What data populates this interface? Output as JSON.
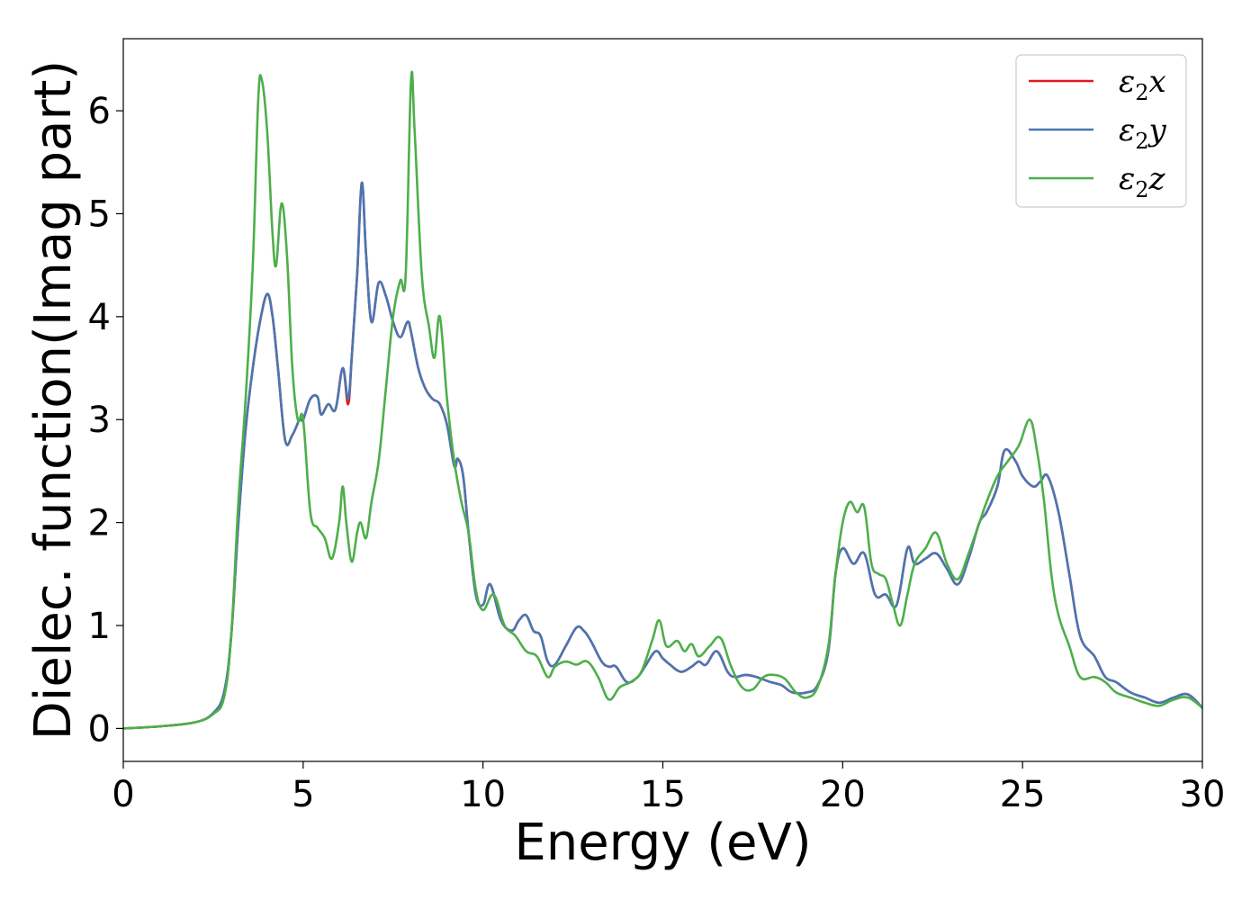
{
  "chart_data": {
    "type": "line",
    "xlabel": "Energy (eV)",
    "ylabel": "Dielec. function(Imag part)",
    "xlim": [
      0,
      30
    ],
    "ylim": [
      -0.32,
      6.7
    ],
    "xticks": [
      "0",
      "5",
      "10",
      "15",
      "20",
      "25",
      "30"
    ],
    "yticks": [
      "0",
      "1",
      "2",
      "3",
      "4",
      "5",
      "6"
    ],
    "grid": false,
    "legend_position": "top-right",
    "series": [
      {
        "name_main": "ε",
        "name_sub": "2",
        "name_suffix": "x",
        "color": "#e41a1c",
        "x": [
          0,
          1,
          2,
          2.5,
          2.8,
          3.0,
          3.2,
          3.4,
          3.6,
          3.8,
          4.0,
          4.15,
          4.3,
          4.5,
          4.7,
          4.9,
          5.0,
          5.2,
          5.4,
          5.5,
          5.7,
          5.9,
          6.1,
          6.25,
          6.35,
          6.5,
          6.63,
          6.75,
          6.9,
          7.1,
          7.3,
          7.5,
          7.7,
          7.9,
          8.0,
          8.2,
          8.4,
          8.6,
          8.8,
          9.0,
          9.2,
          9.3,
          9.45,
          9.6,
          9.8,
          10.0,
          10.2,
          10.5,
          10.8,
          11.0,
          11.2,
          11.4,
          11.6,
          11.8,
          12.0,
          12.3,
          12.6,
          12.8,
          13.0,
          13.3,
          13.5,
          13.7,
          14.0,
          14.3,
          14.5,
          14.8,
          15.0,
          15.2,
          15.5,
          15.8,
          16.0,
          16.2,
          16.5,
          16.8,
          17.0,
          17.3,
          17.6,
          18.0,
          18.3,
          18.6,
          19.0,
          19.3,
          19.6,
          19.8,
          20.0,
          20.3,
          20.6,
          20.9,
          21.2,
          21.5,
          21.8,
          22.0,
          22.3,
          22.6,
          22.9,
          23.2,
          23.5,
          23.8,
          24.0,
          24.3,
          24.5,
          24.8,
          25.0,
          25.3,
          25.5,
          25.7,
          26.0,
          26.3,
          26.6,
          27.0,
          27.3,
          27.6,
          28.0,
          28.4,
          28.8,
          29.2,
          29.6,
          30.0
        ],
        "y": [
          0,
          0.02,
          0.06,
          0.15,
          0.35,
          0.9,
          2.0,
          2.9,
          3.5,
          3.95,
          4.22,
          4.0,
          3.5,
          2.8,
          2.85,
          3.0,
          3.0,
          3.2,
          3.22,
          3.05,
          3.15,
          3.1,
          3.5,
          3.15,
          3.6,
          4.4,
          5.3,
          4.6,
          3.95,
          4.33,
          4.2,
          3.95,
          3.8,
          3.95,
          3.85,
          3.5,
          3.3,
          3.2,
          3.15,
          2.95,
          2.55,
          2.62,
          2.45,
          1.9,
          1.3,
          1.2,
          1.4,
          1.05,
          0.95,
          1.05,
          1.1,
          0.95,
          0.9,
          0.65,
          0.62,
          0.8,
          0.98,
          0.95,
          0.85,
          0.65,
          0.6,
          0.6,
          0.45,
          0.5,
          0.6,
          0.75,
          0.68,
          0.62,
          0.55,
          0.6,
          0.65,
          0.62,
          0.75,
          0.55,
          0.5,
          0.52,
          0.5,
          0.45,
          0.42,
          0.35,
          0.35,
          0.42,
          0.75,
          1.5,
          1.75,
          1.6,
          1.7,
          1.3,
          1.3,
          1.2,
          1.75,
          1.6,
          1.65,
          1.7,
          1.55,
          1.4,
          1.65,
          2.0,
          2.1,
          2.35,
          2.7,
          2.6,
          2.45,
          2.35,
          2.4,
          2.45,
          2.1,
          1.5,
          0.9,
          0.7,
          0.5,
          0.45,
          0.35,
          0.3,
          0.25,
          0.3,
          0.33,
          0.2
        ]
      },
      {
        "name_main": "ε",
        "name_sub": "2",
        "name_suffix": "y",
        "color": "#4a76b3",
        "x": [
          0,
          1,
          2,
          2.5,
          2.8,
          3.0,
          3.2,
          3.4,
          3.6,
          3.8,
          4.0,
          4.15,
          4.3,
          4.5,
          4.7,
          4.9,
          5.0,
          5.2,
          5.4,
          5.5,
          5.7,
          5.9,
          6.1,
          6.25,
          6.35,
          6.5,
          6.63,
          6.75,
          6.9,
          7.1,
          7.3,
          7.5,
          7.7,
          7.9,
          8.0,
          8.2,
          8.4,
          8.6,
          8.8,
          9.0,
          9.2,
          9.3,
          9.45,
          9.6,
          9.8,
          10.0,
          10.2,
          10.5,
          10.8,
          11.0,
          11.2,
          11.4,
          11.6,
          11.8,
          12.0,
          12.3,
          12.6,
          12.8,
          13.0,
          13.3,
          13.5,
          13.7,
          14.0,
          14.3,
          14.5,
          14.8,
          15.0,
          15.2,
          15.5,
          15.8,
          16.0,
          16.2,
          16.5,
          16.8,
          17.0,
          17.3,
          17.6,
          18.0,
          18.3,
          18.6,
          19.0,
          19.3,
          19.6,
          19.8,
          20.0,
          20.3,
          20.6,
          20.9,
          21.2,
          21.5,
          21.8,
          22.0,
          22.3,
          22.6,
          22.9,
          23.2,
          23.5,
          23.8,
          24.0,
          24.3,
          24.5,
          24.8,
          25.0,
          25.3,
          25.5,
          25.7,
          26.0,
          26.3,
          26.6,
          27.0,
          27.3,
          27.6,
          28.0,
          28.4,
          28.8,
          29.2,
          29.6,
          30.0
        ],
        "y": [
          0,
          0.02,
          0.06,
          0.15,
          0.35,
          0.9,
          2.0,
          2.9,
          3.5,
          3.95,
          4.22,
          4.0,
          3.5,
          2.8,
          2.85,
          3.0,
          3.0,
          3.2,
          3.22,
          3.05,
          3.15,
          3.1,
          3.5,
          3.2,
          3.6,
          4.4,
          5.3,
          4.6,
          3.95,
          4.33,
          4.2,
          3.95,
          3.8,
          3.95,
          3.85,
          3.5,
          3.3,
          3.2,
          3.15,
          2.95,
          2.55,
          2.62,
          2.45,
          1.9,
          1.3,
          1.2,
          1.4,
          1.05,
          0.95,
          1.05,
          1.1,
          0.95,
          0.9,
          0.65,
          0.62,
          0.8,
          0.98,
          0.95,
          0.85,
          0.65,
          0.6,
          0.6,
          0.45,
          0.5,
          0.6,
          0.75,
          0.68,
          0.62,
          0.55,
          0.6,
          0.65,
          0.62,
          0.75,
          0.55,
          0.5,
          0.52,
          0.5,
          0.45,
          0.42,
          0.35,
          0.35,
          0.42,
          0.75,
          1.5,
          1.75,
          1.6,
          1.7,
          1.3,
          1.3,
          1.2,
          1.75,
          1.6,
          1.65,
          1.7,
          1.55,
          1.4,
          1.65,
          2.0,
          2.1,
          2.35,
          2.7,
          2.6,
          2.45,
          2.35,
          2.4,
          2.45,
          2.1,
          1.5,
          0.9,
          0.7,
          0.5,
          0.45,
          0.35,
          0.3,
          0.25,
          0.3,
          0.33,
          0.2
        ]
      },
      {
        "name_main": "ε",
        "name_sub": "2",
        "name_suffix": "z",
        "color": "#4daf4a",
        "x": [
          0,
          1,
          2,
          2.5,
          2.8,
          3.0,
          3.2,
          3.4,
          3.6,
          3.75,
          3.85,
          4.0,
          4.15,
          4.25,
          4.4,
          4.55,
          4.7,
          4.85,
          5.0,
          5.2,
          5.4,
          5.6,
          5.8,
          6.0,
          6.1,
          6.2,
          6.35,
          6.5,
          6.6,
          6.75,
          6.9,
          7.1,
          7.3,
          7.5,
          7.7,
          7.85,
          8.0,
          8.1,
          8.3,
          8.5,
          8.65,
          8.8,
          9.0,
          9.2,
          9.4,
          9.6,
          9.8,
          10.0,
          10.3,
          10.6,
          10.9,
          11.2,
          11.5,
          11.8,
          12.0,
          12.3,
          12.6,
          12.9,
          13.2,
          13.5,
          13.8,
          14.1,
          14.4,
          14.7,
          14.9,
          15.1,
          15.4,
          15.6,
          15.8,
          16.0,
          16.3,
          16.6,
          16.9,
          17.2,
          17.5,
          17.8,
          18.1,
          18.4,
          18.7,
          19.0,
          19.3,
          19.6,
          19.8,
          20.0,
          20.2,
          20.4,
          20.6,
          20.8,
          21.0,
          21.2,
          21.4,
          21.6,
          21.8,
          22.0,
          22.3,
          22.6,
          22.9,
          23.2,
          23.5,
          23.8,
          24.0,
          24.3,
          24.6,
          24.9,
          25.2,
          25.4,
          25.6,
          25.8,
          26.0,
          26.3,
          26.6,
          27.0,
          27.3,
          27.6,
          28.0,
          28.4,
          28.8,
          29.2,
          29.6,
          30.0
        ],
        "y": [
          0,
          0.02,
          0.06,
          0.14,
          0.3,
          0.9,
          2.2,
          3.2,
          4.5,
          6.1,
          6.3,
          5.8,
          4.8,
          4.5,
          5.1,
          4.6,
          3.5,
          3.0,
          3.0,
          2.1,
          1.95,
          1.85,
          1.65,
          2.0,
          2.35,
          2.0,
          1.62,
          1.9,
          2.0,
          1.85,
          2.2,
          2.6,
          3.3,
          4.0,
          4.35,
          4.4,
          6.3,
          5.8,
          4.4,
          3.9,
          3.6,
          4.0,
          3.2,
          2.6,
          2.2,
          1.9,
          1.35,
          1.15,
          1.3,
          1.0,
          0.9,
          0.75,
          0.7,
          0.5,
          0.6,
          0.65,
          0.62,
          0.65,
          0.5,
          0.28,
          0.4,
          0.45,
          0.55,
          0.85,
          1.05,
          0.8,
          0.85,
          0.75,
          0.82,
          0.7,
          0.8,
          0.88,
          0.6,
          0.4,
          0.38,
          0.5,
          0.52,
          0.48,
          0.35,
          0.3,
          0.4,
          0.8,
          1.5,
          2.0,
          2.2,
          2.1,
          2.15,
          1.6,
          1.5,
          1.45,
          1.2,
          1.0,
          1.3,
          1.6,
          1.75,
          1.9,
          1.6,
          1.45,
          1.7,
          2.0,
          2.2,
          2.45,
          2.6,
          2.75,
          3.0,
          2.7,
          2.2,
          1.5,
          1.1,
          0.8,
          0.5,
          0.5,
          0.45,
          0.35,
          0.3,
          0.25,
          0.22,
          0.28,
          0.3,
          0.2
        ]
      }
    ]
  }
}
